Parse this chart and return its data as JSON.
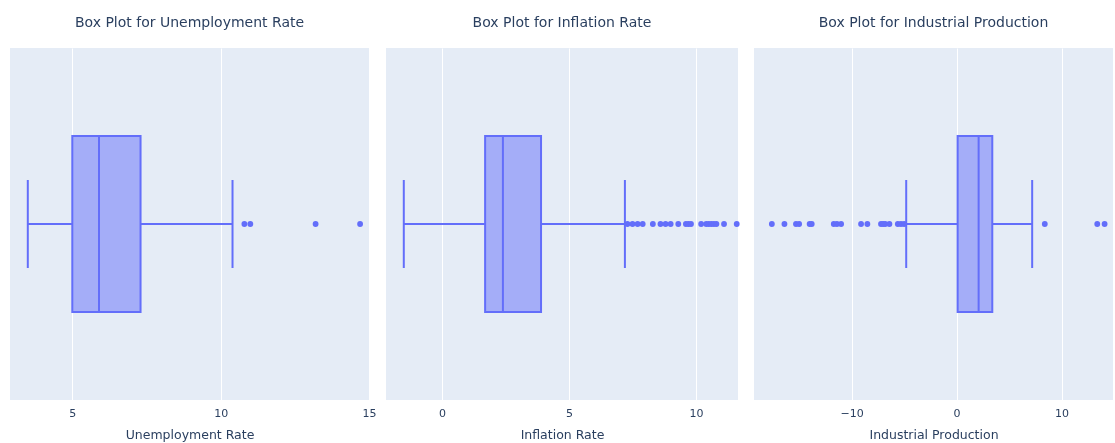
{
  "chart_data": [
    {
      "type": "box",
      "title": "Box Plot for Unemployment Rate",
      "xlabel": "Unemployment Rate",
      "orientation": "horizontal",
      "categories": [
        null
      ],
      "series": [
        {
          "color": "#636efa",
          "boxes": [
            {
              "low": 3.5,
              "q1": 5.0,
              "median": 5.9,
              "q3": 7.3,
              "high": 10.4,
              "outliers": [
                10.8,
                11.0,
                13.2,
                14.7
              ]
            }
          ]
        }
      ],
      "xlim": [
        2.9,
        15
      ],
      "xticks": [
        5,
        10,
        15
      ],
      "grid": "x",
      "tick_labels": "x"
    },
    {
      "type": "box",
      "title": "Box Plot for Inflation Rate",
      "xlabel": "Inflation Rate",
      "orientation": "horizontal",
      "categories": [
        null
      ],
      "series": [
        {
          "color": "#636efa",
          "boxes": [
            {
              "low": -1.5,
              "q1": 1.7,
              "median": 2.4,
              "q3": 3.9,
              "high": 7.2,
              "outliers": [
                7.3,
                7.5,
                7.7,
                7.9,
                8.3,
                8.6,
                8.8,
                9.0,
                9.3,
                9.6,
                9.7,
                9.8,
                10.2,
                10.4,
                10.5,
                10.6,
                10.7,
                10.8,
                11.1,
                11.6
              ]
            }
          ]
        }
      ],
      "xlim": [
        -2.2,
        11.65
      ],
      "xticks": [
        0,
        5,
        10
      ],
      "grid": "x",
      "tick_labels": "x"
    },
    {
      "type": "box",
      "title": "Box Plot for Industrial Production",
      "xlabel": "Industrial Production",
      "orientation": "horizontal",
      "categories": [
        null
      ],
      "series": [
        {
          "color": "#636efa",
          "boxes": [
            {
              "low": -4.8,
              "q1": 0.1,
              "median": 2.1,
              "q3": 3.4,
              "high": 7.2,
              "outliers": [
                -17.6,
                -16.4,
                -15.3,
                -15.0,
                -14.0,
                -13.8,
                -11.7,
                -11.4,
                -11.0,
                -9.1,
                -8.5,
                -7.2,
                -7.0,
                -6.8,
                -6.4,
                -5.6,
                -5.3,
                -5.0,
                8.4,
                13.4,
                14.1
              ]
            }
          ]
        }
      ],
      "xlim": [
        -19.3,
        14.9
      ],
      "xticks": [
        {
          "value": -10,
          "label": "−10"
        },
        0,
        10
      ],
      "grid": "x",
      "tick_labels": "x"
    }
  ]
}
